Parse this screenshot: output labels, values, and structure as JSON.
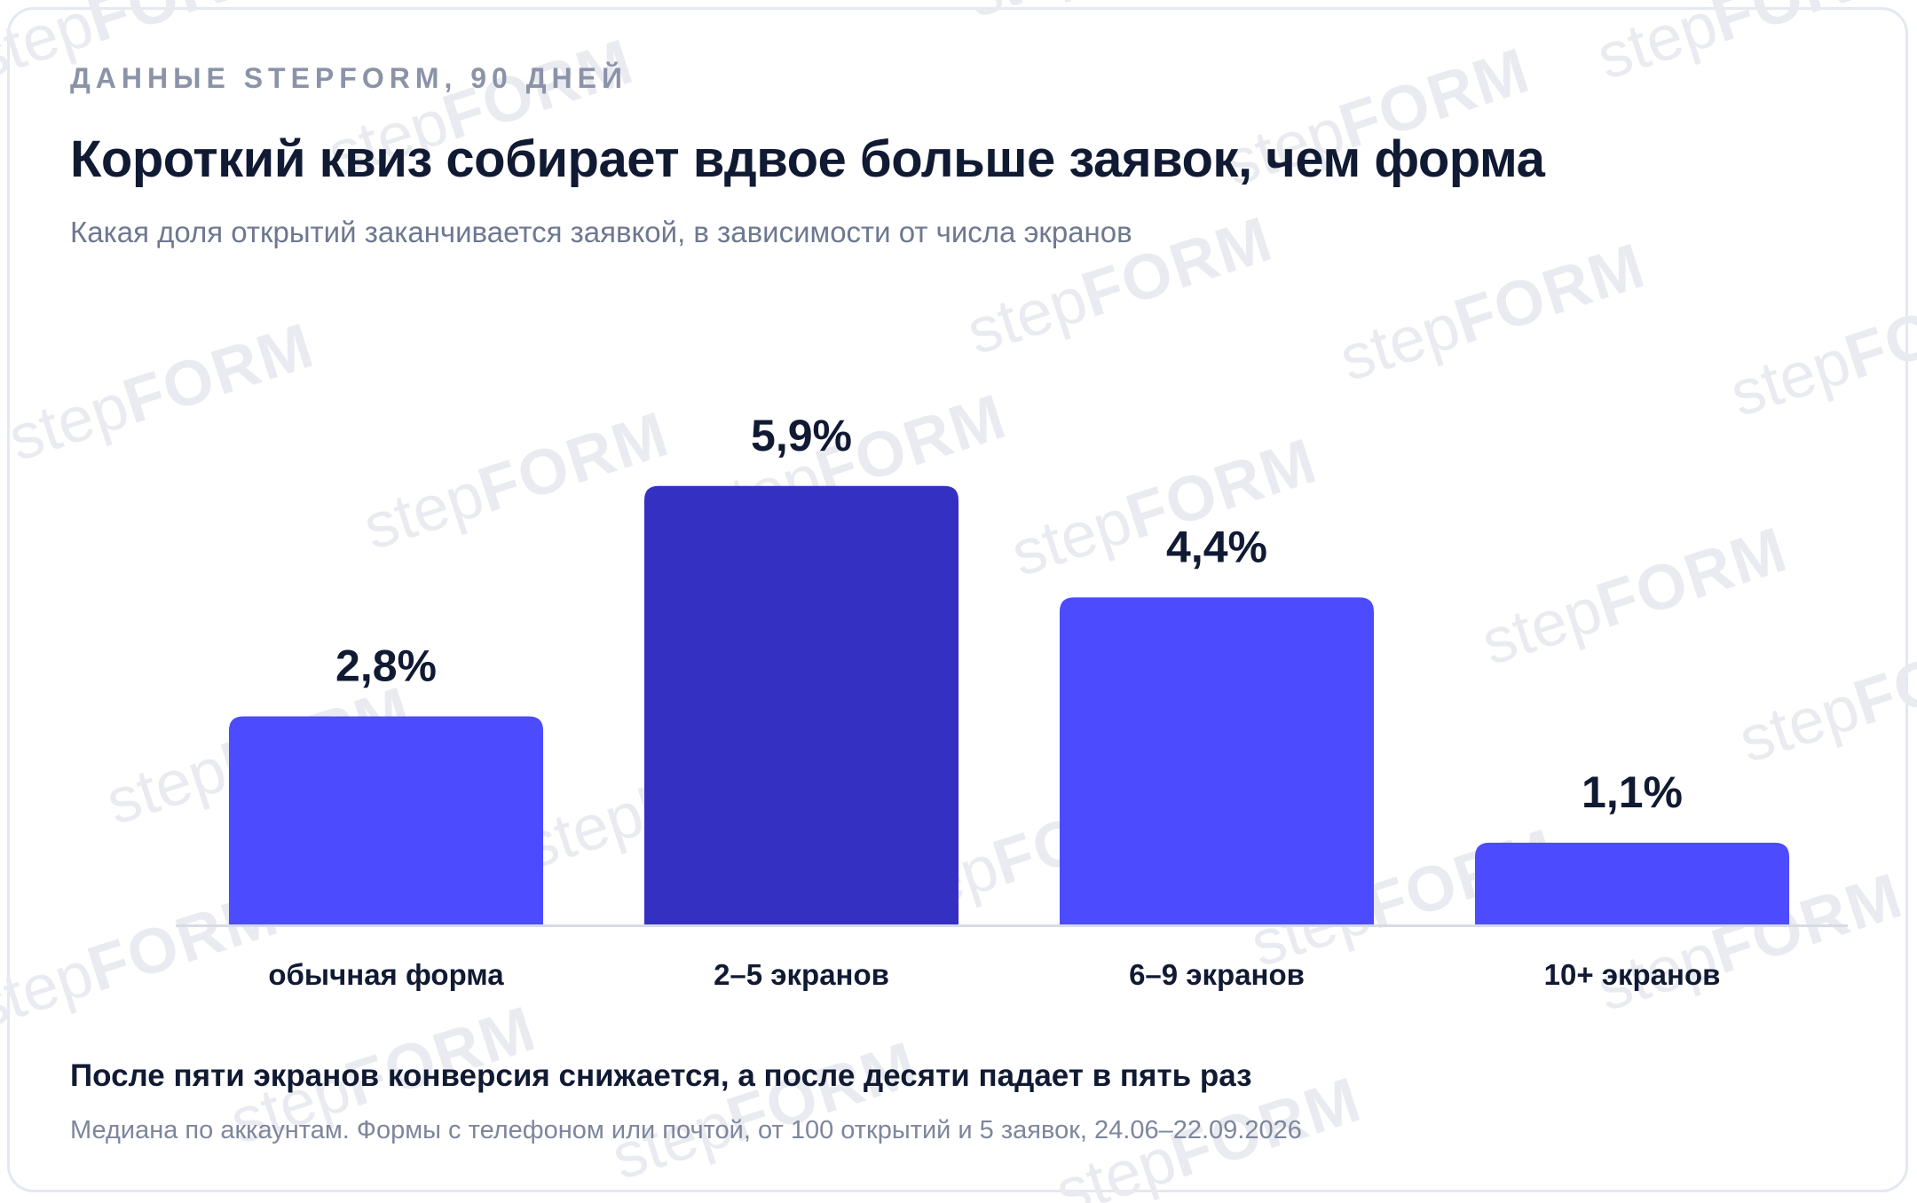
{
  "eyebrow": "ДАННЫЕ STEPFORM, 90 ДНЕЙ",
  "title": "Короткий квиз собирает вдвое больше заявок, чем форма",
  "subtitle": "Какая доля открытий заканчивается заявкой, в зависимости от числа экранов",
  "watermark": {
    "light": "step",
    "bold": "FORM"
  },
  "chart_data": {
    "type": "bar",
    "categories": [
      "обычная форма",
      "2–5 экранов",
      "6–9 экранов",
      "10+ экранов"
    ],
    "values": [
      2.8,
      5.9,
      4.4,
      1.1
    ],
    "value_labels": [
      "2,8%",
      "5,9%",
      "4,4%",
      "1,1%"
    ],
    "unit": "%",
    "ylim": [
      0,
      8.5
    ],
    "grid": false,
    "legend": "none",
    "highlight_index": 1,
    "colors": {
      "bar": "#4c4bfd",
      "highlight": "#3430c1",
      "baseline": "#d7dbe5"
    }
  },
  "conclusion": "После пяти экранов конверсия снижается, а после десяти падает в пять раз",
  "footnote": "Медиана по аккаунтам. Формы с телефоном или почтой, от 100 открытий и 5 заявок, 24.06–22.09.2026"
}
